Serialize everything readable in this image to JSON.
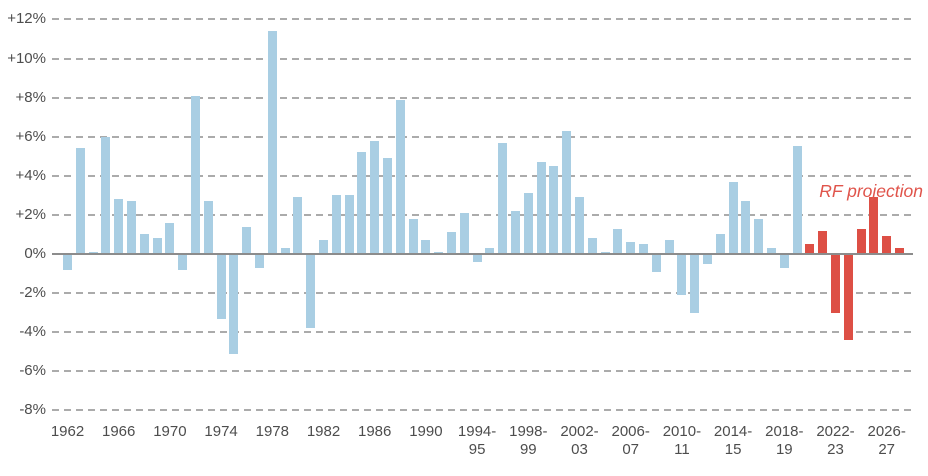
{
  "chart_data": {
    "type": "bar",
    "title": "",
    "xlabel": "",
    "ylabel": "",
    "unit": "percent",
    "grid": "horizontal-dashed",
    "legend_position": "none",
    "y_axis": {
      "min": -8,
      "max": 12,
      "step": 2
    },
    "y_tick_labels": [
      "+12%",
      "+10%",
      "+8%",
      "+6%",
      "+4%",
      "+2%",
      "0%",
      "-2%",
      "-4%",
      "-6%",
      "-8%"
    ],
    "categories": [
      "1962",
      "1963",
      "1964",
      "1965",
      "1966",
      "1967",
      "1968",
      "1969",
      "1970",
      "1971",
      "1972",
      "1973",
      "1974",
      "1975",
      "1976",
      "1977",
      "1978",
      "1979",
      "1980",
      "1981",
      "1982",
      "1983",
      "1984",
      "1985",
      "1986",
      "1987",
      "1988",
      "1989",
      "1990",
      "1991",
      "1992",
      "1993",
      "1994-95",
      "1995-96",
      "1996-97",
      "1997-98",
      "1998-99",
      "1999-00",
      "2000-01",
      "2001-02",
      "2002-03",
      "2003-04",
      "2004-05",
      "2005-06",
      "2006-07",
      "2007-08",
      "2008-09",
      "2009-10",
      "2010-11",
      "2011-12",
      "2012-13",
      "2013-14",
      "2014-15",
      "2015-16",
      "2016-17",
      "2017-18",
      "2018-19",
      "2019-20",
      "2020-21",
      "2021-22",
      "2022-23",
      "2023-24",
      "2024-25",
      "2025-26",
      "2026-27",
      "2027-28"
    ],
    "values": [
      -0.8,
      5.4,
      0.1,
      6.0,
      2.8,
      2.7,
      1.0,
      0.8,
      1.6,
      -0.8,
      8.1,
      2.7,
      -3.3,
      -5.1,
      1.4,
      -0.7,
      11.4,
      0.3,
      2.9,
      -3.8,
      0.7,
      3.0,
      3.0,
      5.2,
      5.8,
      4.9,
      7.9,
      1.8,
      0.7,
      0.1,
      1.1,
      2.1,
      -0.4,
      0.3,
      5.7,
      2.2,
      3.1,
      4.7,
      4.5,
      6.3,
      2.9,
      0.8,
      0.1,
      1.3,
      0.6,
      0.5,
      -0.9,
      0.7,
      -2.1,
      -3.0,
      -0.5,
      1.0,
      3.7,
      2.7,
      1.8,
      0.3,
      -0.7,
      5.5,
      0.5,
      1.2,
      -3.0,
      -4.4,
      1.3,
      2.9,
      0.9,
      0.3
    ],
    "x_tick_every": 4,
    "x_tick_labels": [
      "1962",
      "1966",
      "1970",
      "1974",
      "1978",
      "1982",
      "1986",
      "1990",
      "1994-\n95",
      "1998-\n99",
      "2002-\n03",
      "2006-\n07",
      "2010-\n11",
      "2014-\n15",
      "2018-\n19",
      "2022-\n23",
      "2026-\n27"
    ],
    "projection": {
      "label": "RF projection",
      "start_category": "2020-21",
      "start_index": 58
    },
    "colors": {
      "outturn_bar": "#a9cee3",
      "projection_bar": "#dd4f45",
      "annotation_text": "#e0544b",
      "gridline": "#ababab",
      "zero_line": "#8c8c8c",
      "axis_text": "#4d4d4d"
    }
  }
}
